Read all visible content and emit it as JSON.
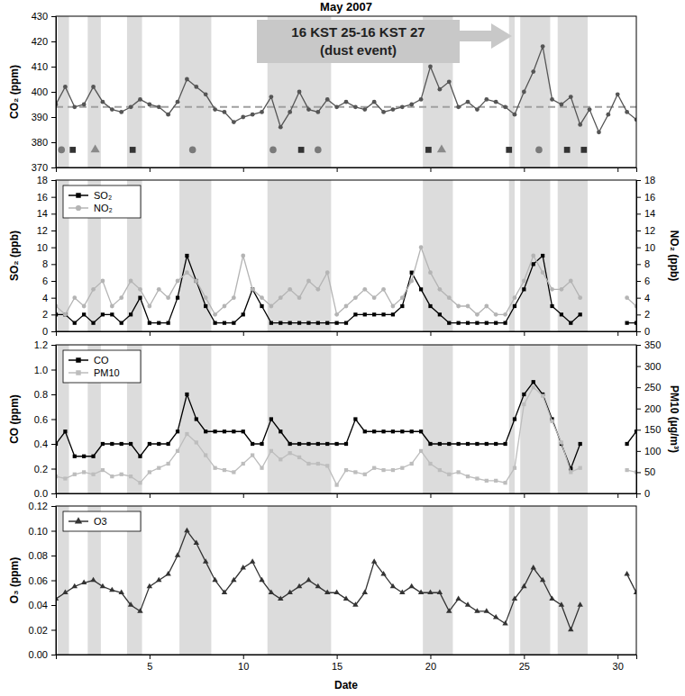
{
  "chart_data": [
    {
      "type": "line",
      "title": "May 2007",
      "ylabel": "CO₂ (ppm)",
      "x": [
        0,
        0.5,
        1,
        1.5,
        2,
        2.5,
        3,
        3.5,
        4,
        4.5,
        5,
        5.5,
        6,
        6.5,
        7,
        7.5,
        8,
        8.5,
        9,
        9.5,
        10,
        10.5,
        11,
        11.5,
        12,
        12.5,
        13,
        13.5,
        14,
        14.5,
        15,
        15.5,
        16,
        16.5,
        17,
        17.5,
        18,
        18.5,
        19,
        19.5,
        20,
        20.5,
        21,
        21.5,
        22,
        22.5,
        23,
        23.5,
        24,
        24.5,
        25,
        25.5,
        26,
        26.5,
        27,
        27.5,
        28,
        28.5,
        29,
        29.5,
        30,
        30.5,
        31
      ],
      "xlim": [
        0,
        31
      ],
      "xticks": [
        5,
        10,
        15,
        20,
        25,
        30
      ],
      "ylim": [
        370,
        430
      ],
      "yticks": [
        370,
        380,
        390,
        400,
        410,
        420,
        430
      ],
      "tick_labels": "y",
      "series": [
        {
          "name": "CO₂",
          "color": "#555555",
          "marker": "circle",
          "line_style": "solid",
          "values": [
            395,
            402,
            394,
            395,
            402,
            396,
            393,
            392,
            394,
            397,
            395,
            394,
            391,
            396,
            405,
            402,
            399,
            393,
            392,
            388,
            390,
            391,
            392,
            398,
            386,
            392,
            400,
            393,
            392,
            397,
            394,
            396,
            394,
            393,
            396,
            392,
            393,
            394,
            395,
            397,
            410,
            401,
            404,
            394,
            396,
            393,
            397,
            396,
            394,
            391,
            400,
            408,
            418,
            397,
            395,
            398,
            387,
            393,
            384,
            391,
            399,
            392,
            389
          ]
        }
      ],
      "baseline": 394,
      "events": [
        {
          "x": 0.3,
          "y": 377,
          "marker": "circle",
          "color": "#7a7a7a"
        },
        {
          "x": 0.9,
          "y": 377,
          "marker": "square",
          "color": "#333333"
        },
        {
          "x": 2.1,
          "y": 377,
          "marker": "triangle",
          "color": "#8a8a8a"
        },
        {
          "x": 4.1,
          "y": 377,
          "marker": "square",
          "color": "#333333"
        },
        {
          "x": 7.3,
          "y": 377,
          "marker": "circle",
          "color": "#7a7a7a"
        },
        {
          "x": 11.6,
          "y": 377,
          "marker": "circle",
          "color": "#7a7a7a"
        },
        {
          "x": 13.1,
          "y": 377,
          "marker": "square",
          "color": "#333333"
        },
        {
          "x": 14.0,
          "y": 377,
          "marker": "circle",
          "color": "#7a7a7a"
        },
        {
          "x": 19.9,
          "y": 377,
          "marker": "square",
          "color": "#333333"
        },
        {
          "x": 20.6,
          "y": 377,
          "marker": "triangle",
          "color": "#8a8a8a"
        },
        {
          "x": 24.2,
          "y": 377,
          "marker": "square",
          "color": "#333333"
        },
        {
          "x": 25.8,
          "y": 377,
          "marker": "circle",
          "color": "#7a7a7a"
        },
        {
          "x": 27.3,
          "y": 377,
          "marker": "square",
          "color": "#333333"
        },
        {
          "x": 28.2,
          "y": 377,
          "marker": "square",
          "color": "#333333"
        }
      ],
      "annotation": [
        "16 KST 25-16 KST 27",
        "(dust event)"
      ],
      "shaded_periods": [
        [
          0.1,
          0.7
        ],
        [
          1.7,
          2.4
        ],
        [
          3.8,
          4.6
        ],
        [
          6.6,
          8.3
        ],
        [
          11.3,
          14.7
        ],
        [
          19.6,
          21.2
        ],
        [
          24.2,
          24.5
        ],
        [
          24.8,
          26.4
        ],
        [
          26.8,
          28.4
        ]
      ]
    },
    {
      "type": "line",
      "ylabel": "SO₂ (ppb)",
      "y2label": "NO₂ (ppb)",
      "x": [
        0,
        0.5,
        1,
        1.5,
        2,
        2.5,
        3,
        3.5,
        4,
        4.5,
        5,
        5.5,
        6,
        6.5,
        7,
        7.5,
        8,
        8.5,
        9,
        9.5,
        10,
        10.5,
        11,
        11.5,
        12,
        12.5,
        13,
        13.5,
        14,
        14.5,
        15,
        15.5,
        16,
        16.5,
        17,
        17.5,
        18,
        18.5,
        19,
        19.5,
        20,
        20.5,
        21,
        21.5,
        22,
        22.5,
        23,
        23.5,
        24,
        24.5,
        25,
        25.5,
        26,
        26.5,
        27,
        27.5,
        28,
        28.5,
        29,
        29.5,
        30,
        30.5,
        31
      ],
      "xlim": [
        0,
        31
      ],
      "xticks": [
        5,
        10,
        15,
        20,
        25,
        30
      ],
      "ylim": [
        0,
        18
      ],
      "yticks": [
        0,
        2,
        4,
        6,
        8,
        10,
        12,
        14,
        16,
        18
      ],
      "y2lim": [
        0,
        18
      ],
      "y2ticks": [
        0,
        2,
        4,
        6,
        8,
        10,
        12,
        14,
        16,
        18
      ],
      "tick_labels": "y",
      "legend": "top-left",
      "series": [
        {
          "name": "SO₂",
          "color": "#000000",
          "marker": "square",
          "line_style": "solid",
          "values": [
            2,
            2,
            1,
            2,
            1,
            2,
            2,
            1,
            2,
            4,
            1,
            1,
            1,
            4,
            9,
            6,
            3,
            1,
            1,
            1,
            2,
            5,
            3,
            1,
            1,
            1,
            1,
            1,
            1,
            1,
            1,
            1,
            2,
            2,
            2,
            2,
            2,
            3,
            7,
            5,
            3,
            2,
            1,
            1,
            1,
            1,
            1,
            1,
            1,
            3,
            5,
            8,
            9,
            3,
            2,
            1,
            2,
            null,
            null,
            null,
            null,
            1,
            1
          ]
        },
        {
          "name": "NO₂",
          "color": "#b4b4b4",
          "marker": "circle",
          "line_style": "solid",
          "axis": "y2",
          "values": [
            3,
            2,
            4,
            3,
            5,
            6,
            3,
            4,
            6,
            5,
            3,
            5,
            4,
            6,
            7,
            6,
            4,
            2,
            3,
            4,
            9,
            5,
            4,
            3,
            4,
            5,
            4,
            6,
            5,
            7,
            2,
            3,
            4,
            5,
            4,
            5,
            3,
            4,
            6,
            10,
            7,
            5,
            4,
            3,
            3,
            2,
            3,
            2,
            2,
            4,
            6,
            9,
            7,
            5,
            5,
            6,
            4,
            null,
            null,
            null,
            null,
            4,
            3
          ]
        }
      ],
      "shaded_periods": [
        [
          0.1,
          0.7
        ],
        [
          1.7,
          2.4
        ],
        [
          3.8,
          4.6
        ],
        [
          6.6,
          8.3
        ],
        [
          11.3,
          14.7
        ],
        [
          19.6,
          21.2
        ],
        [
          24.2,
          24.5
        ],
        [
          24.8,
          26.4
        ],
        [
          26.8,
          28.4
        ]
      ]
    },
    {
      "type": "line",
      "ylabel": "CO (ppm)",
      "y2label": "PM10 (µg/m³)",
      "x": [
        0,
        0.5,
        1,
        1.5,
        2,
        2.5,
        3,
        3.5,
        4,
        4.5,
        5,
        5.5,
        6,
        6.5,
        7,
        7.5,
        8,
        8.5,
        9,
        9.5,
        10,
        10.5,
        11,
        11.5,
        12,
        12.5,
        13,
        13.5,
        14,
        14.5,
        15,
        15.5,
        16,
        16.5,
        17,
        17.5,
        18,
        18.5,
        19,
        19.5,
        20,
        20.5,
        21,
        21.5,
        22,
        22.5,
        23,
        23.5,
        24,
        24.5,
        25,
        25.5,
        26,
        26.5,
        27,
        27.5,
        28,
        28.5,
        29,
        29.5,
        30,
        30.5,
        31
      ],
      "xlim": [
        0,
        31
      ],
      "xticks": [
        5,
        10,
        15,
        20,
        25,
        30
      ],
      "ylim": [
        0,
        1.2
      ],
      "yticks": [
        {
          "value": 0,
          "label": "0.0"
        },
        0.2,
        0.4,
        0.6,
        0.8,
        {
          "value": 1,
          "label": "1.0"
        },
        1.2
      ],
      "y2lim": [
        0,
        350
      ],
      "y2ticks": [
        0,
        50,
        100,
        150,
        200,
        250,
        300,
        350
      ],
      "tick_labels": "y",
      "legend": "top-left",
      "series": [
        {
          "name": "CO",
          "color": "#000000",
          "marker": "square",
          "line_style": "solid",
          "values": [
            0.4,
            0.5,
            0.3,
            0.3,
            0.3,
            0.4,
            0.4,
            0.4,
            0.4,
            0.3,
            0.4,
            0.4,
            0.4,
            0.5,
            0.8,
            0.6,
            0.5,
            0.5,
            0.5,
            0.5,
            0.5,
            0.4,
            0.4,
            0.6,
            0.5,
            0.4,
            0.4,
            0.4,
            0.4,
            0.4,
            0.4,
            0.4,
            0.6,
            0.5,
            0.5,
            0.5,
            0.5,
            0.5,
            0.5,
            0.5,
            0.4,
            0.4,
            0.4,
            0.4,
            0.4,
            0.4,
            0.4,
            0.4,
            0.4,
            0.6,
            0.8,
            0.9,
            0.8,
            0.6,
            0.4,
            0.2,
            0.4,
            null,
            null,
            null,
            null,
            0.4,
            0.5
          ]
        },
        {
          "name": "PM10",
          "color": "#bdbdbd",
          "marker": "square",
          "line_style": "solid",
          "axis": "y2",
          "values": [
            40,
            35,
            45,
            50,
            45,
            55,
            40,
            45,
            40,
            25,
            50,
            60,
            70,
            100,
            140,
            120,
            90,
            60,
            55,
            50,
            70,
            90,
            60,
            100,
            80,
            95,
            85,
            70,
            70,
            65,
            20,
            55,
            50,
            45,
            60,
            55,
            55,
            60,
            70,
            100,
            70,
            55,
            45,
            50,
            40,
            35,
            30,
            30,
            25,
            60,
            210,
            250,
            230,
            170,
            120,
            50,
            60,
            null,
            null,
            null,
            null,
            55,
            50
          ]
        }
      ],
      "shaded_periods": [
        [
          0.1,
          0.7
        ],
        [
          1.7,
          2.4
        ],
        [
          3.8,
          4.6
        ],
        [
          6.6,
          8.3
        ],
        [
          11.3,
          14.7
        ],
        [
          19.6,
          21.2
        ],
        [
          24.2,
          24.5
        ],
        [
          24.8,
          26.4
        ],
        [
          26.8,
          28.4
        ]
      ]
    },
    {
      "type": "line",
      "xlabel": "Date",
      "ylabel": "O₃ (ppm)",
      "x": [
        0,
        0.5,
        1,
        1.5,
        2,
        2.5,
        3,
        3.5,
        4,
        4.5,
        5,
        5.5,
        6,
        6.5,
        7,
        7.5,
        8,
        8.5,
        9,
        9.5,
        10,
        10.5,
        11,
        11.5,
        12,
        12.5,
        13,
        13.5,
        14,
        14.5,
        15,
        15.5,
        16,
        16.5,
        17,
        17.5,
        18,
        18.5,
        19,
        19.5,
        20,
        20.5,
        21,
        21.5,
        22,
        22.5,
        23,
        23.5,
        24,
        24.5,
        25,
        25.5,
        26,
        26.5,
        27,
        27.5,
        28,
        28.5,
        29,
        29.5,
        30,
        30.5,
        31
      ],
      "xlim": [
        0,
        31
      ],
      "xticks": [
        5,
        10,
        15,
        20,
        25,
        30
      ],
      "ylim": [
        0,
        0.12
      ],
      "yticks": [
        {
          "value": 0,
          "label": "0.00"
        },
        0.02,
        0.04,
        0.06,
        0.08,
        {
          "value": 0.1,
          "label": "0.10"
        },
        0.12
      ],
      "legend": "top-left",
      "series": [
        {
          "name": "O3",
          "color": "#333333",
          "marker": "triangle",
          "line_style": "solid",
          "values": [
            0.045,
            0.05,
            0.055,
            0.058,
            0.06,
            0.055,
            0.052,
            0.05,
            0.04,
            0.035,
            0.055,
            0.06,
            0.065,
            0.08,
            0.1,
            0.09,
            0.075,
            0.06,
            0.05,
            0.06,
            0.07,
            0.075,
            0.06,
            0.05,
            0.045,
            0.05,
            0.055,
            0.06,
            0.055,
            0.05,
            0.05,
            0.045,
            0.04,
            0.05,
            0.075,
            0.065,
            0.055,
            0.05,
            0.055,
            0.05,
            0.05,
            0.05,
            0.035,
            0.045,
            0.04,
            0.035,
            0.035,
            0.03,
            0.025,
            0.045,
            0.055,
            0.07,
            0.06,
            0.045,
            0.04,
            0.02,
            0.04,
            null,
            null,
            null,
            null,
            0.065,
            0.05
          ]
        }
      ],
      "shaded_periods": [
        [
          0.1,
          0.7
        ],
        [
          1.7,
          2.4
        ],
        [
          3.8,
          4.6
        ],
        [
          6.6,
          8.3
        ],
        [
          11.3,
          14.7
        ],
        [
          19.6,
          21.2
        ],
        [
          24.2,
          24.5
        ],
        [
          24.8,
          26.4
        ],
        [
          26.8,
          28.4
        ]
      ]
    }
  ]
}
